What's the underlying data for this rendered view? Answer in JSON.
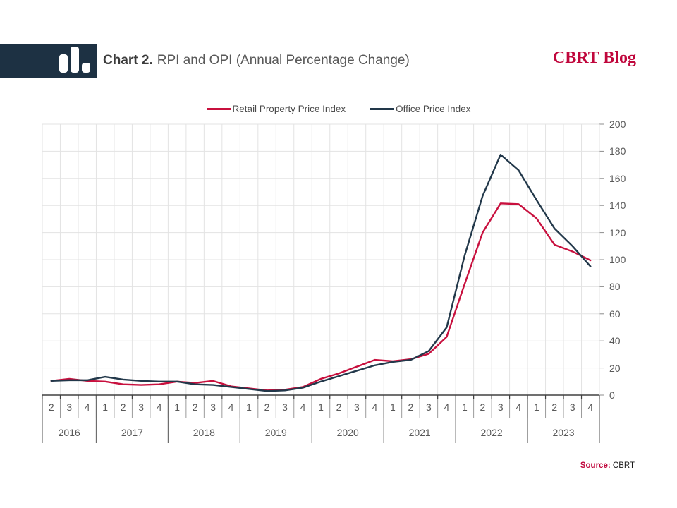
{
  "header": {
    "title_bold": "Chart 2.",
    "title_rest": "RPI and OPI (Annual Percentage Change)",
    "brand": "CBRT Blog",
    "logo_icon": "bar-chart-icon"
  },
  "source": {
    "label_bold": "Source:",
    "label_rest": " CBRT"
  },
  "colors": {
    "rpi_red": "#C8103E",
    "opi_navy": "#22384A",
    "header_navy": "#1D3143",
    "gridline": "#E3E3E3",
    "axis": "#404040",
    "tick_gray": "#8c8c8c",
    "quarter_sep": "#9b9b9b",
    "year_sep": "#6e6e6e"
  },
  "chart_data": {
    "type": "line",
    "title": "Chart 2. RPI and OPI (Annual Percentage Change)",
    "xlabel": "",
    "ylabel": "",
    "ylim": [
      0,
      200
    ],
    "yticks": [
      0,
      20,
      40,
      60,
      80,
      100,
      120,
      140,
      160,
      180,
      200
    ],
    "y_axis_side": "right",
    "grid": true,
    "legend_position": "top",
    "x_years": [
      {
        "year": "2016",
        "quarters": [
          "2",
          "3",
          "4"
        ]
      },
      {
        "year": "2017",
        "quarters": [
          "1",
          "2",
          "3",
          "4"
        ]
      },
      {
        "year": "2018",
        "quarters": [
          "1",
          "2",
          "3",
          "4"
        ]
      },
      {
        "year": "2019",
        "quarters": [
          "1",
          "2",
          "3",
          "4"
        ]
      },
      {
        "year": "2020",
        "quarters": [
          "1",
          "2",
          "3",
          "4"
        ]
      },
      {
        "year": "2021",
        "quarters": [
          "1",
          "2",
          "3",
          "4"
        ]
      },
      {
        "year": "2022",
        "quarters": [
          "1",
          "2",
          "3",
          "4"
        ]
      },
      {
        "year": "2023",
        "quarters": [
          "1",
          "2",
          "3",
          "4"
        ]
      }
    ],
    "series": [
      {
        "name": "Retail Property Price Index",
        "color": "#C8103E",
        "values": [
          10.5,
          12,
          10.5,
          10,
          8,
          7.5,
          8,
          10,
          9,
          10.5,
          6.5,
          5,
          3.5,
          4,
          6,
          12,
          16,
          21,
          26,
          25,
          26.5,
          30.5,
          43,
          82,
          120,
          141.5,
          141,
          130.5,
          111,
          106,
          99.5
        ]
      },
      {
        "name": "Office Price Index",
        "color": "#22384A",
        "values": [
          10.5,
          11,
          11,
          13.5,
          11.5,
          10.5,
          10,
          10,
          8,
          7.5,
          6,
          4.5,
          3,
          3.5,
          5.5,
          10,
          14,
          18,
          22,
          24.5,
          26,
          32.5,
          50,
          103,
          147,
          177.5,
          166,
          144,
          123,
          110,
          95
        ]
      }
    ]
  }
}
